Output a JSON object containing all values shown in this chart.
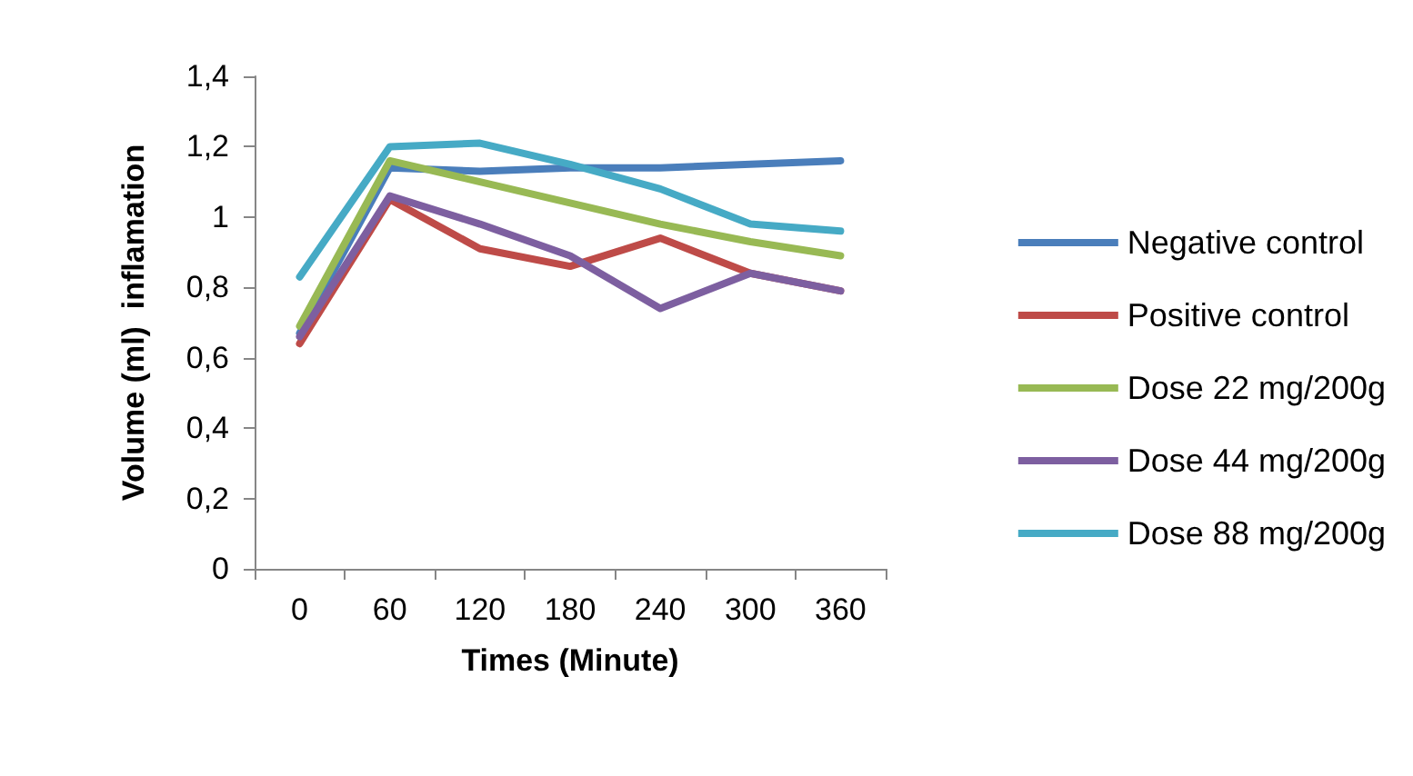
{
  "chart_data": {
    "type": "line",
    "xlabel": "Times (Minute)",
    "ylabel": "Volume (ml)  inflamation",
    "categories": [
      "0",
      "60",
      "120",
      "180",
      "240",
      "300",
      "360"
    ],
    "series": [
      {
        "name": "Negative control",
        "color": "#4a7ebb",
        "values": [
          0.67,
          1.14,
          1.13,
          1.14,
          1.14,
          1.15,
          1.16
        ]
      },
      {
        "name": "Positive control",
        "color": "#be4b48",
        "values": [
          0.64,
          1.05,
          0.91,
          0.86,
          0.94,
          0.84,
          0.79
        ]
      },
      {
        "name": "Dose 22 mg/200g",
        "color": "#98b954",
        "values": [
          0.69,
          1.16,
          1.1,
          1.04,
          0.98,
          0.93,
          0.89
        ]
      },
      {
        "name": "Dose 44 mg/200g",
        "color": "#7d5fa0",
        "values": [
          0.66,
          1.06,
          0.98,
          0.89,
          0.74,
          0.84,
          0.79
        ]
      },
      {
        "name": "Dose 88 mg/200g",
        "color": "#46aac5",
        "values": [
          0.83,
          1.2,
          1.21,
          1.15,
          1.08,
          0.98,
          0.96
        ]
      }
    ],
    "ylim": [
      0,
      1.4
    ],
    "yticks": [
      0,
      {
        "value": 0.2,
        "label": "0,2"
      },
      {
        "value": 0.4,
        "label": "0,4"
      },
      {
        "value": 0.6,
        "label": "0,6"
      },
      {
        "value": 0.8,
        "label": "0,8"
      },
      1,
      {
        "value": 1.2,
        "label": "1,2"
      },
      {
        "value": 1.4,
        "label": "1,4"
      }
    ],
    "grid": false,
    "legend": "right",
    "marker": "none",
    "line_style": "solid"
  }
}
